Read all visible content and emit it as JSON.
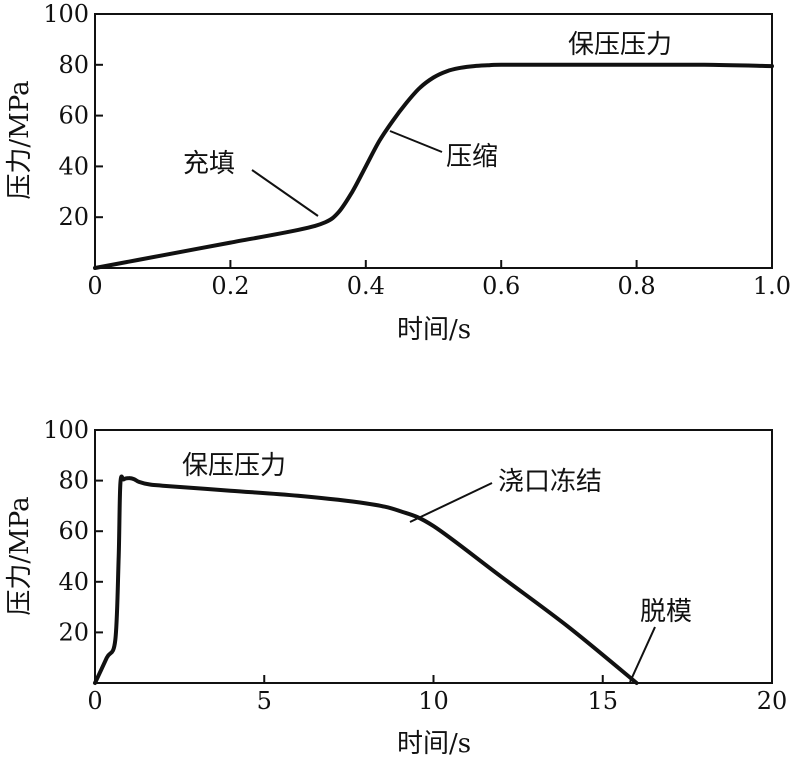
{
  "chart_data": [
    {
      "type": "line",
      "xlabel": "时间/s",
      "ylabel": "压力/MPa",
      "xlim": [
        0,
        1.0
      ],
      "ylim": [
        0,
        100
      ],
      "xticks": [
        0,
        0.2,
        0.4,
        0.6,
        0.8,
        1.0
      ],
      "xtick_labels": [
        "0",
        "0.2",
        "0.4",
        "0.6",
        "0.8",
        "1.0"
      ],
      "yticks": [
        20,
        40,
        60,
        80,
        100
      ],
      "ytick_labels": [
        "20",
        "40",
        "60",
        "80",
        "100"
      ],
      "grid": false,
      "series": [
        {
          "x": [
            0.0,
            0.1,
            0.2,
            0.3,
            0.34,
            0.36,
            0.38,
            0.4,
            0.42,
            0.44,
            0.46,
            0.48,
            0.5,
            0.52,
            0.54,
            0.56,
            0.58,
            0.6,
            0.7,
            0.8,
            0.9,
            1.0
          ],
          "y": [
            0,
            5,
            10,
            15,
            18,
            22,
            30,
            40,
            50,
            58,
            65,
            71,
            75,
            77.5,
            78.8,
            79.5,
            79.8,
            80,
            80,
            80,
            80,
            79.5
          ]
        }
      ],
      "annotations": [
        {
          "text": "充填",
          "x": 0.345,
          "y": 19
        },
        {
          "text": "压缩",
          "x": 0.41,
          "y": 53
        },
        {
          "text": "保压压力",
          "x": 0.72,
          "y": 86
        }
      ]
    },
    {
      "type": "line",
      "xlabel": "时间/s",
      "ylabel": "压力/MPa",
      "xlim": [
        0,
        20
      ],
      "ylim": [
        0,
        100
      ],
      "xticks": [
        0,
        5,
        10,
        15,
        20
      ],
      "xtick_labels": [
        "0",
        "5",
        "10",
        "15",
        "20"
      ],
      "yticks": [
        20,
        40,
        60,
        80,
        100
      ],
      "ytick_labels": [
        "20",
        "40",
        "60",
        "80",
        "100"
      ],
      "grid": false,
      "series": [
        {
          "x": [
            0.0,
            0.35,
            0.6,
            0.7,
            0.75,
            0.85,
            1.0,
            1.15,
            1.3,
            1.6,
            2,
            4,
            6,
            8,
            9,
            10,
            12,
            14,
            16
          ],
          "y": [
            0,
            10,
            17,
            50,
            79,
            80.5,
            81,
            80.6,
            79.5,
            78.5,
            78,
            76,
            74,
            71,
            68,
            62,
            42,
            22,
            0
          ]
        }
      ],
      "annotations": [
        {
          "text": "保压压力",
          "x": 3.0,
          "y": 81
        },
        {
          "text": "浇口冻结",
          "x": 9.5,
          "y": 63
        },
        {
          "text": "脱模",
          "x": 16.0,
          "y": 0
        }
      ]
    }
  ]
}
